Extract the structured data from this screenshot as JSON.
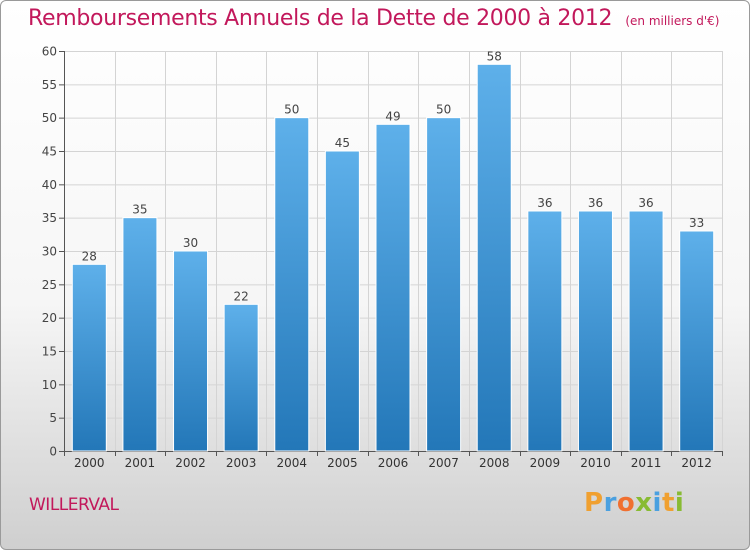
{
  "chart_data": {
    "type": "bar",
    "title": "Remboursements Annuels de la Dette de 2000 à 2012",
    "subtitle": "(en milliers d'€)",
    "categories": [
      "2000",
      "2001",
      "2002",
      "2003",
      "2004",
      "2005",
      "2006",
      "2007",
      "2008",
      "2009",
      "2010",
      "2011",
      "2012"
    ],
    "values": [
      28,
      35,
      30,
      22,
      50,
      45,
      49,
      50,
      58,
      36,
      36,
      36,
      33
    ],
    "ylim": [
      0,
      60
    ],
    "yticks": [
      0,
      5,
      10,
      15,
      20,
      25,
      30,
      35,
      40,
      45,
      50,
      55,
      60
    ],
    "grid": true,
    "bar_color_top": "#5eb0ea",
    "bar_color_bottom": "#2377b8"
  },
  "footer": {
    "commune": "WILLERVAL",
    "logo_letters": [
      {
        "ch": "P",
        "color": "#f0a030"
      },
      {
        "ch": "r",
        "color": "#4aa0e0"
      },
      {
        "ch": "o",
        "color": "#f07030"
      },
      {
        "ch": "x",
        "color": "#88bb33"
      },
      {
        "ch": "i",
        "color": "#4aa0e0"
      },
      {
        "ch": "t",
        "color": "#f0a030"
      },
      {
        "ch": "i",
        "color": "#88bb33"
      }
    ]
  }
}
